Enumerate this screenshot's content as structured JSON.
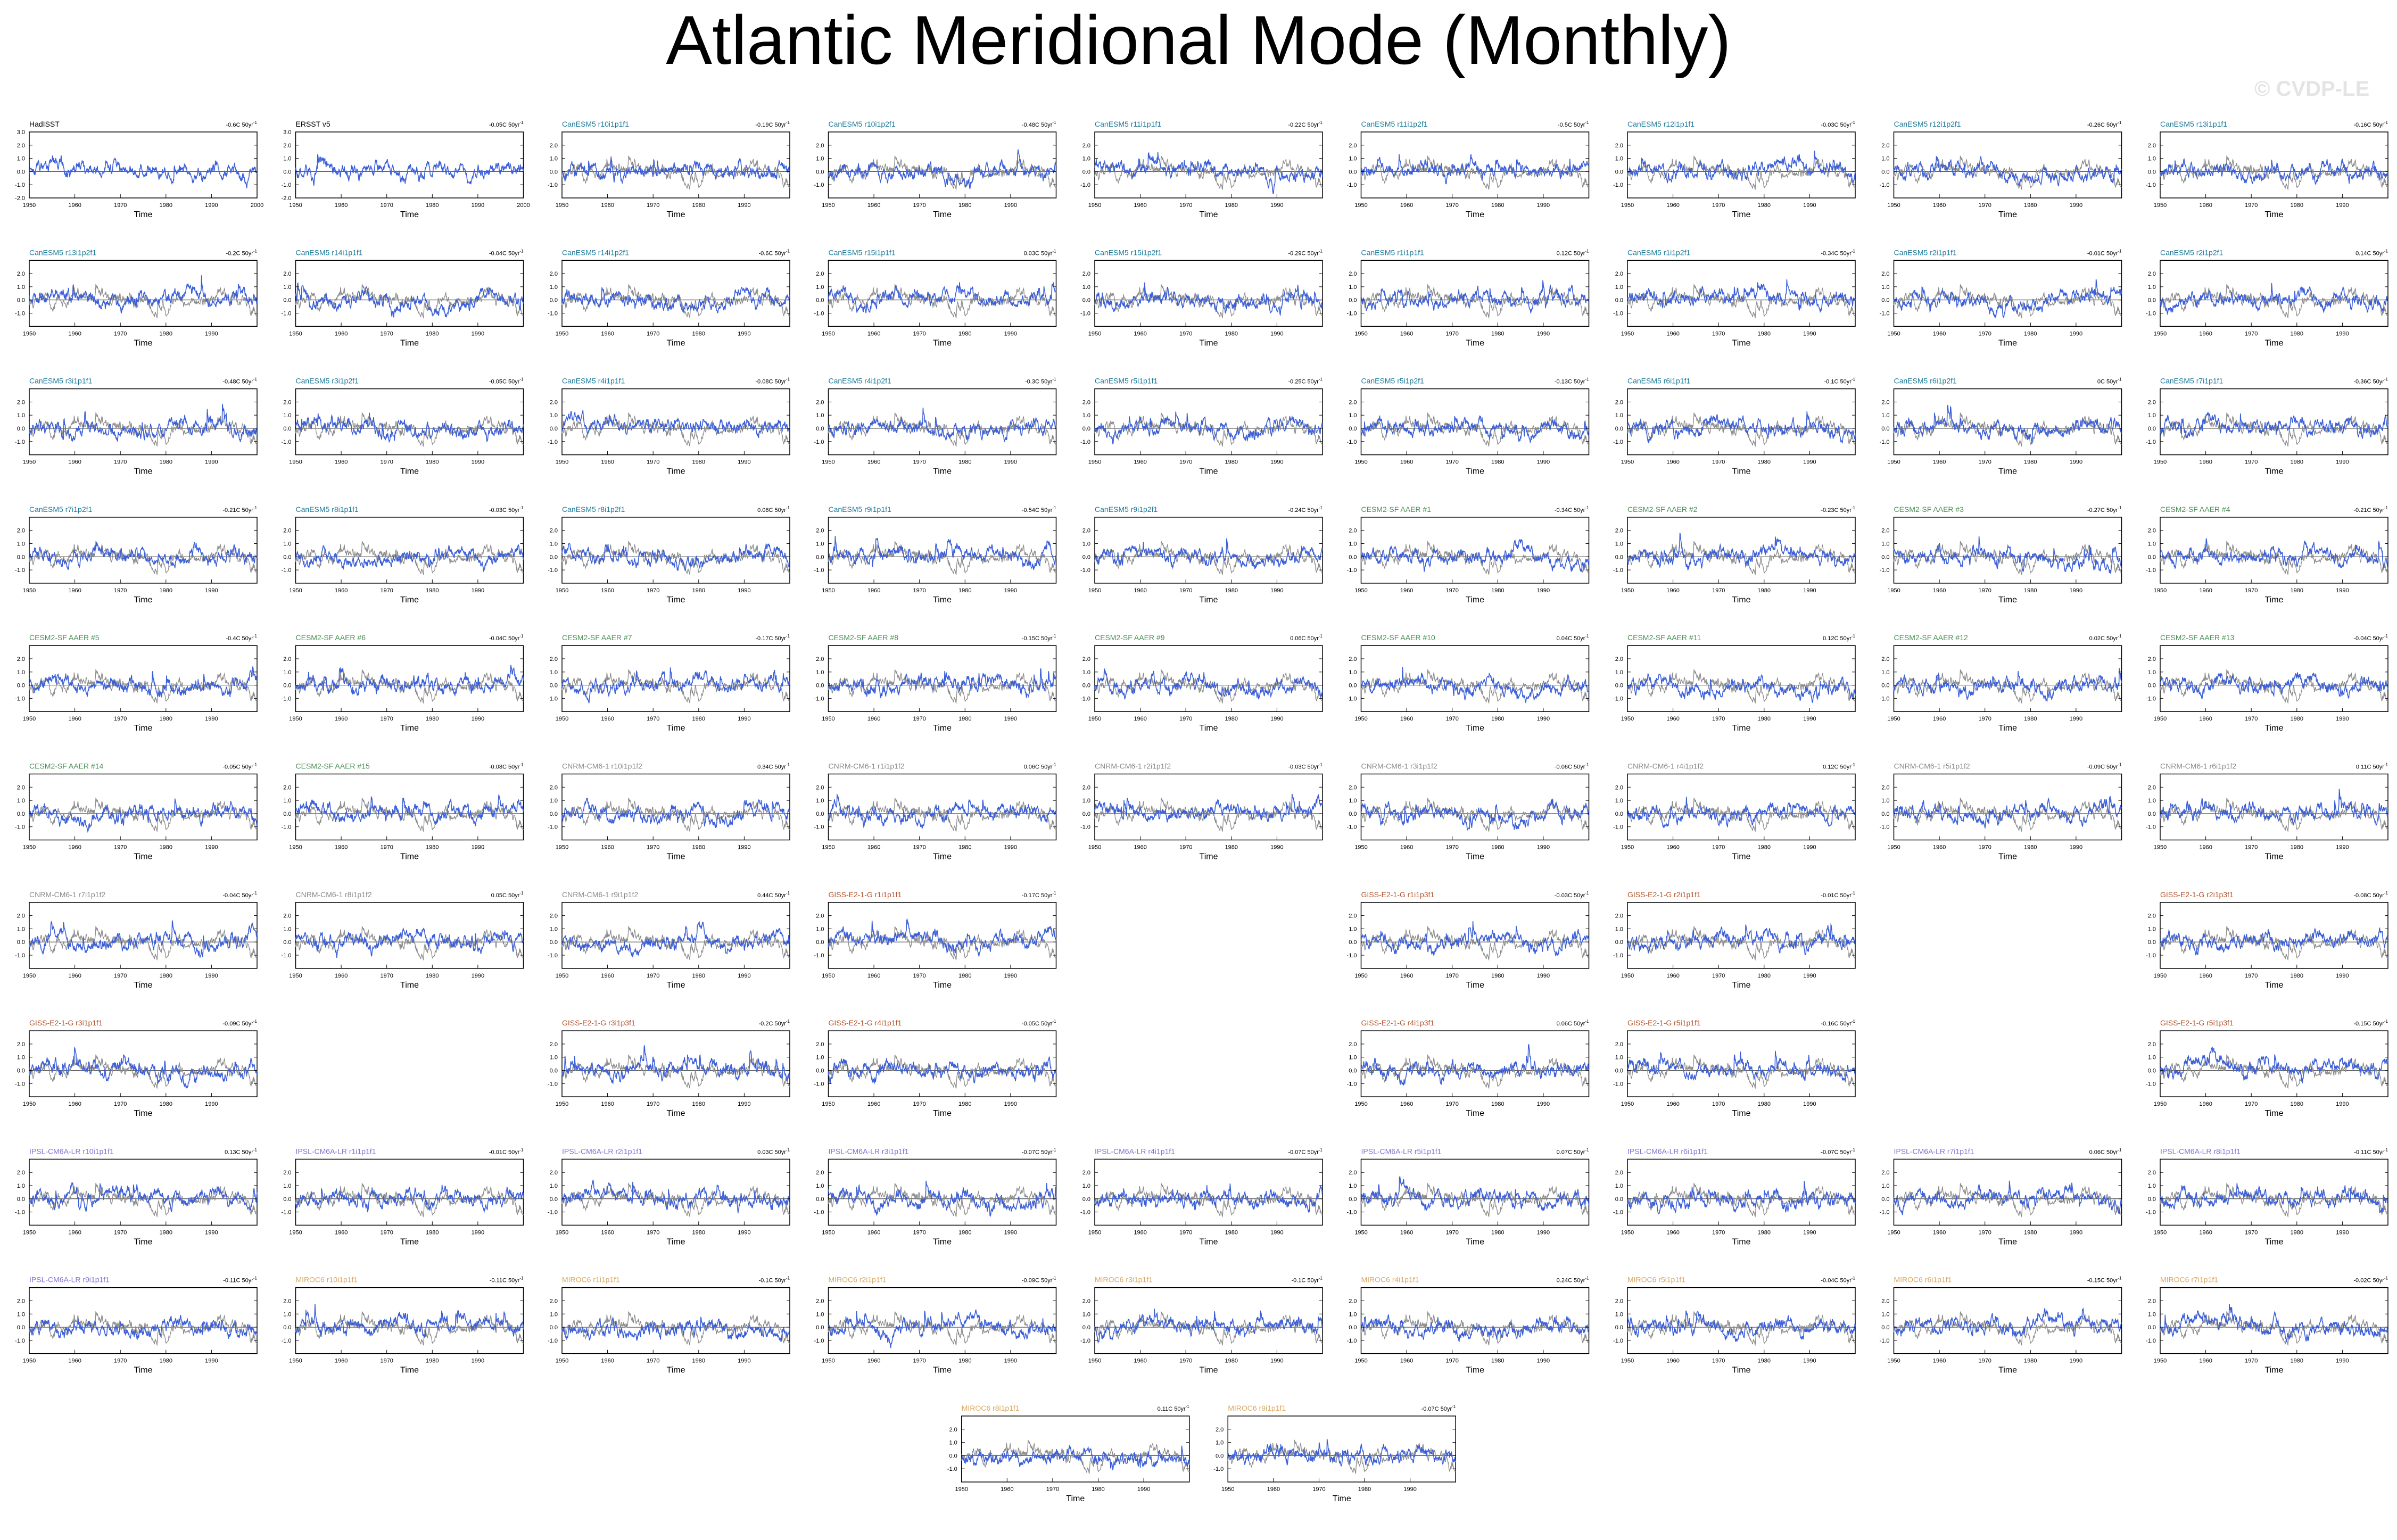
{
  "title": "Atlantic Meridional Mode (Monthly)",
  "watermark": "© CVDP-LE",
  "colors": {
    "model": "#3b5fd9",
    "observed": "#8c8c8c",
    "axis": "#000000",
    "obs_label": "#000000",
    "CanESM5": "#1e7a99",
    "CESM2-SF": "#4a8f55",
    "CNRM-CM6-1": "#8a8a8a",
    "GISS-E2-1-G": "#b4532a",
    "IPSL-CM6A-LR": "#8a6fd6",
    "MIROC6": "#d9a860"
  },
  "chart_data": {
    "type": "line",
    "xlabel": "Time",
    "xlim": [
      1950,
      2000
    ],
    "xticks": [
      1950,
      1960,
      1970,
      1980,
      1990
    ],
    "xticks_obs": [
      1950,
      1960,
      1970,
      1980,
      1990,
      2000
    ],
    "ylim": [
      -2.0,
      3.0
    ],
    "yticks": [
      "2.0",
      "1.0",
      "0.0",
      "-1.0"
    ],
    "yticks_obs": [
      "3.0",
      "2.0",
      "1.0",
      "0.0",
      "-1.0",
      "-2.0"
    ],
    "panels": [
      {
        "row": 0,
        "col": 0,
        "name": "HadISST",
        "trend": "-0.6C 50yr",
        "group": "obs"
      },
      {
        "row": 0,
        "col": 1,
        "name": "ERSST v5",
        "trend": "-0.05C 50yr",
        "group": "obs"
      },
      {
        "row": 0,
        "col": 2,
        "name": "CanESM5 r10i1p1f1",
        "trend": "-0.19C 50yr",
        "group": "CanESM5"
      },
      {
        "row": 0,
        "col": 3,
        "name": "CanESM5 r10i1p2f1",
        "trend": "-0.48C 50yr",
        "group": "CanESM5"
      },
      {
        "row": 0,
        "col": 4,
        "name": "CanESM5 r11i1p1f1",
        "trend": "-0.22C 50yr",
        "group": "CanESM5"
      },
      {
        "row": 0,
        "col": 5,
        "name": "CanESM5 r11i1p2f1",
        "trend": "-0.5C 50yr",
        "group": "CanESM5"
      },
      {
        "row": 0,
        "col": 6,
        "name": "CanESM5 r12i1p1f1",
        "trend": "-0.03C 50yr",
        "group": "CanESM5"
      },
      {
        "row": 0,
        "col": 7,
        "name": "CanESM5 r12i1p2f1",
        "trend": "-0.26C 50yr",
        "group": "CanESM5"
      },
      {
        "row": 0,
        "col": 8,
        "name": "CanESM5 r13i1p1f1",
        "trend": "-0.16C 50yr",
        "group": "CanESM5"
      },
      {
        "row": 1,
        "col": 0,
        "name": "CanESM5 r13i1p2f1",
        "trend": "-0.2C 50yr",
        "group": "CanESM5"
      },
      {
        "row": 1,
        "col": 1,
        "name": "CanESM5 r14i1p1f1",
        "trend": "-0.04C 50yr",
        "group": "CanESM5"
      },
      {
        "row": 1,
        "col": 2,
        "name": "CanESM5 r14i1p2f1",
        "trend": "-0.6C 50yr",
        "group": "CanESM5"
      },
      {
        "row": 1,
        "col": 3,
        "name": "CanESM5 r15i1p1f1",
        "trend": "0.03C 50yr",
        "group": "CanESM5"
      },
      {
        "row": 1,
        "col": 4,
        "name": "CanESM5 r15i1p2f1",
        "trend": "-0.29C 50yr",
        "group": "CanESM5"
      },
      {
        "row": 1,
        "col": 5,
        "name": "CanESM5 r1i1p1f1",
        "trend": "0.12C 50yr",
        "group": "CanESM5"
      },
      {
        "row": 1,
        "col": 6,
        "name": "CanESM5 r1i1p2f1",
        "trend": "-0.34C 50yr",
        "group": "CanESM5"
      },
      {
        "row": 1,
        "col": 7,
        "name": "CanESM5 r2i1p1f1",
        "trend": "-0.01C 50yr",
        "group": "CanESM5"
      },
      {
        "row": 1,
        "col": 8,
        "name": "CanESM5 r2i1p2f1",
        "trend": "0.14C 50yr",
        "group": "CanESM5"
      },
      {
        "row": 2,
        "col": 0,
        "name": "CanESM5 r3i1p1f1",
        "trend": "-0.48C 50yr",
        "group": "CanESM5"
      },
      {
        "row": 2,
        "col": 1,
        "name": "CanESM5 r3i1p2f1",
        "trend": "-0.05C 50yr",
        "group": "CanESM5"
      },
      {
        "row": 2,
        "col": 2,
        "name": "CanESM5 r4i1p1f1",
        "trend": "-0.08C 50yr",
        "group": "CanESM5"
      },
      {
        "row": 2,
        "col": 3,
        "name": "CanESM5 r4i1p2f1",
        "trend": "-0.3C 50yr",
        "group": "CanESM5"
      },
      {
        "row": 2,
        "col": 4,
        "name": "CanESM5 r5i1p1f1",
        "trend": "-0.25C 50yr",
        "group": "CanESM5"
      },
      {
        "row": 2,
        "col": 5,
        "name": "CanESM5 r5i1p2f1",
        "trend": "-0.13C 50yr",
        "group": "CanESM5"
      },
      {
        "row": 2,
        "col": 6,
        "name": "CanESM5 r6i1p1f1",
        "trend": "-0.1C 50yr",
        "group": "CanESM5"
      },
      {
        "row": 2,
        "col": 7,
        "name": "CanESM5 r6i1p2f1",
        "trend": "0C 50yr",
        "group": "CanESM5"
      },
      {
        "row": 2,
        "col": 8,
        "name": "CanESM5 r7i1p1f1",
        "trend": "-0.36C 50yr",
        "group": "CanESM5"
      },
      {
        "row": 3,
        "col": 0,
        "name": "CanESM5 r7i1p2f1",
        "trend": "-0.21C 50yr",
        "group": "CanESM5"
      },
      {
        "row": 3,
        "col": 1,
        "name": "CanESM5 r8i1p1f1",
        "trend": "-0.03C 50yr",
        "group": "CanESM5"
      },
      {
        "row": 3,
        "col": 2,
        "name": "CanESM5 r8i1p2f1",
        "trend": "0.08C 50yr",
        "group": "CanESM5"
      },
      {
        "row": 3,
        "col": 3,
        "name": "CanESM5 r9i1p1f1",
        "trend": "-0.54C 50yr",
        "group": "CanESM5"
      },
      {
        "row": 3,
        "col": 4,
        "name": "CanESM5 r9i1p2f1",
        "trend": "-0.24C 50yr",
        "group": "CanESM5"
      },
      {
        "row": 3,
        "col": 5,
        "name": "CESM2-SF AAER #1",
        "trend": "-0.34C 50yr",
        "group": "CESM2-SF"
      },
      {
        "row": 3,
        "col": 6,
        "name": "CESM2-SF AAER #2",
        "trend": "-0.23C 50yr",
        "group": "CESM2-SF"
      },
      {
        "row": 3,
        "col": 7,
        "name": "CESM2-SF AAER #3",
        "trend": "-0.27C 50yr",
        "group": "CESM2-SF"
      },
      {
        "row": 3,
        "col": 8,
        "name": "CESM2-SF AAER #4",
        "trend": "-0.21C 50yr",
        "group": "CESM2-SF"
      },
      {
        "row": 4,
        "col": 0,
        "name": "CESM2-SF AAER #5",
        "trend": "-0.4C 50yr",
        "group": "CESM2-SF"
      },
      {
        "row": 4,
        "col": 1,
        "name": "CESM2-SF AAER #6",
        "trend": "-0.04C 50yr",
        "group": "CESM2-SF"
      },
      {
        "row": 4,
        "col": 2,
        "name": "CESM2-SF AAER #7",
        "trend": "-0.17C 50yr",
        "group": "CESM2-SF"
      },
      {
        "row": 4,
        "col": 3,
        "name": "CESM2-SF AAER #8",
        "trend": "-0.15C 50yr",
        "group": "CESM2-SF"
      },
      {
        "row": 4,
        "col": 4,
        "name": "CESM2-SF AAER #9",
        "trend": "0.06C 50yr",
        "group": "CESM2-SF"
      },
      {
        "row": 4,
        "col": 5,
        "name": "CESM2-SF AAER #10",
        "trend": "0.04C 50yr",
        "group": "CESM2-SF"
      },
      {
        "row": 4,
        "col": 6,
        "name": "CESM2-SF AAER #11",
        "trend": "0.12C 50yr",
        "group": "CESM2-SF"
      },
      {
        "row": 4,
        "col": 7,
        "name": "CESM2-SF AAER #12",
        "trend": "0.02C 50yr",
        "group": "CESM2-SF"
      },
      {
        "row": 4,
        "col": 8,
        "name": "CESM2-SF AAER #13",
        "trend": "-0.04C 50yr",
        "group": "CESM2-SF"
      },
      {
        "row": 5,
        "col": 0,
        "name": "CESM2-SF AAER #14",
        "trend": "-0.05C 50yr",
        "group": "CESM2-SF"
      },
      {
        "row": 5,
        "col": 1,
        "name": "CESM2-SF AAER #15",
        "trend": "-0.08C 50yr",
        "group": "CESM2-SF"
      },
      {
        "row": 5,
        "col": 2,
        "name": "CNRM-CM6-1 r10i1p1f2",
        "trend": "0.34C 50yr",
        "group": "CNRM-CM6-1"
      },
      {
        "row": 5,
        "col": 3,
        "name": "CNRM-CM6-1 r1i1p1f2",
        "trend": "0.06C 50yr",
        "group": "CNRM-CM6-1"
      },
      {
        "row": 5,
        "col": 4,
        "name": "CNRM-CM6-1 r2i1p1f2",
        "trend": "-0.03C 50yr",
        "group": "CNRM-CM6-1"
      },
      {
        "row": 5,
        "col": 5,
        "name": "CNRM-CM6-1 r3i1p1f2",
        "trend": "-0.06C 50yr",
        "group": "CNRM-CM6-1"
      },
      {
        "row": 5,
        "col": 6,
        "name": "CNRM-CM6-1 r4i1p1f2",
        "trend": "0.12C 50yr",
        "group": "CNRM-CM6-1"
      },
      {
        "row": 5,
        "col": 7,
        "name": "CNRM-CM6-1 r5i1p1f2",
        "trend": "-0.09C 50yr",
        "group": "CNRM-CM6-1"
      },
      {
        "row": 5,
        "col": 8,
        "name": "CNRM-CM6-1 r6i1p1f2",
        "trend": "0.11C 50yr",
        "group": "CNRM-CM6-1"
      },
      {
        "row": 6,
        "col": 0,
        "name": "CNRM-CM6-1 r7i1p1f2",
        "trend": "-0.04C 50yr",
        "group": "CNRM-CM6-1"
      },
      {
        "row": 6,
        "col": 1,
        "name": "CNRM-CM6-1 r8i1p1f2",
        "trend": "0.05C 50yr",
        "group": "CNRM-CM6-1"
      },
      {
        "row": 6,
        "col": 2,
        "name": "CNRM-CM6-1 r9i1p1f2",
        "trend": "0.44C 50yr",
        "group": "CNRM-CM6-1"
      },
      {
        "row": 6,
        "col": 3,
        "name": "GISS-E2-1-G r1i1p1f1",
        "trend": "-0.17C 50yr",
        "group": "GISS-E2-1-G"
      },
      {
        "row": 6,
        "col": 5,
        "name": "GISS-E2-1-G r1i1p3f1",
        "trend": "-0.03C 50yr",
        "group": "GISS-E2-1-G"
      },
      {
        "row": 6,
        "col": 6,
        "name": "GISS-E2-1-G r2i1p1f1",
        "trend": "-0.01C 50yr",
        "group": "GISS-E2-1-G"
      },
      {
        "row": 6,
        "col": 8,
        "name": "GISS-E2-1-G r2i1p3f1",
        "trend": "-0.08C 50yr",
        "group": "GISS-E2-1-G"
      },
      {
        "row": 7,
        "col": 0,
        "name": "GISS-E2-1-G r3i1p1f1",
        "trend": "-0.09C 50yr",
        "group": "GISS-E2-1-G"
      },
      {
        "row": 7,
        "col": 2,
        "name": "GISS-E2-1-G r3i1p3f1",
        "trend": "-0.2C 50yr",
        "group": "GISS-E2-1-G"
      },
      {
        "row": 7,
        "col": 3,
        "name": "GISS-E2-1-G r4i1p1f1",
        "trend": "-0.05C 50yr",
        "group": "GISS-E2-1-G"
      },
      {
        "row": 7,
        "col": 5,
        "name": "GISS-E2-1-G r4i1p3f1",
        "trend": "0.06C 50yr",
        "group": "GISS-E2-1-G"
      },
      {
        "row": 7,
        "col": 6,
        "name": "GISS-E2-1-G r5i1p1f1",
        "trend": "-0.16C 50yr",
        "group": "GISS-E2-1-G"
      },
      {
        "row": 7,
        "col": 8,
        "name": "GISS-E2-1-G r5i1p3f1",
        "trend": "-0.15C 50yr",
        "group": "GISS-E2-1-G"
      },
      {
        "row": 8,
        "col": 0,
        "name": "IPSL-CM6A-LR r10i1p1f1",
        "trend": "0.13C 50yr",
        "group": "IPSL-CM6A-LR"
      },
      {
        "row": 8,
        "col": 1,
        "name": "IPSL-CM6A-LR r1i1p1f1",
        "trend": "-0.01C 50yr",
        "group": "IPSL-CM6A-LR"
      },
      {
        "row": 8,
        "col": 2,
        "name": "IPSL-CM6A-LR r2i1p1f1",
        "trend": "0.03C 50yr",
        "group": "IPSL-CM6A-LR"
      },
      {
        "row": 8,
        "col": 3,
        "name": "IPSL-CM6A-LR r3i1p1f1",
        "trend": "-0.07C 50yr",
        "group": "IPSL-CM6A-LR"
      },
      {
        "row": 8,
        "col": 4,
        "name": "IPSL-CM6A-LR r4i1p1f1",
        "trend": "-0.07C 50yr",
        "group": "IPSL-CM6A-LR"
      },
      {
        "row": 8,
        "col": 5,
        "name": "IPSL-CM6A-LR r5i1p1f1",
        "trend": "0.07C 50yr",
        "group": "IPSL-CM6A-LR"
      },
      {
        "row": 8,
        "col": 6,
        "name": "IPSL-CM6A-LR r6i1p1f1",
        "trend": "-0.07C 50yr",
        "group": "IPSL-CM6A-LR"
      },
      {
        "row": 8,
        "col": 7,
        "name": "IPSL-CM6A-LR r7i1p1f1",
        "trend": "0.06C 50yr",
        "group": "IPSL-CM6A-LR"
      },
      {
        "row": 8,
        "col": 8,
        "name": "IPSL-CM6A-LR r8i1p1f1",
        "trend": "-0.11C 50yr",
        "group": "IPSL-CM6A-LR"
      },
      {
        "row": 9,
        "col": 0,
        "name": "IPSL-CM6A-LR r9i1p1f1",
        "trend": "-0.11C 50yr",
        "group": "IPSL-CM6A-LR"
      },
      {
        "row": 9,
        "col": 1,
        "name": "MIROC6 r10i1p1f1",
        "trend": "-0.11C 50yr",
        "group": "MIROC6"
      },
      {
        "row": 9,
        "col": 2,
        "name": "MIROC6 r1i1p1f1",
        "trend": "-0.1C 50yr",
        "group": "MIROC6"
      },
      {
        "row": 9,
        "col": 3,
        "name": "MIROC6 r2i1p1f1",
        "trend": "-0.09C 50yr",
        "group": "MIROC6"
      },
      {
        "row": 9,
        "col": 4,
        "name": "MIROC6 r3i1p1f1",
        "trend": "-0.1C 50yr",
        "group": "MIROC6"
      },
      {
        "row": 9,
        "col": 5,
        "name": "MIROC6 r4i1p1f1",
        "trend": "0.24C 50yr",
        "group": "MIROC6"
      },
      {
        "row": 9,
        "col": 6,
        "name": "MIROC6 r5i1p1f1",
        "trend": "-0.04C 50yr",
        "group": "MIROC6"
      },
      {
        "row": 9,
        "col": 7,
        "name": "MIROC6 r6i1p1f1",
        "trend": "-0.15C 50yr",
        "group": "MIROC6"
      },
      {
        "row": 9,
        "col": 8,
        "name": "MIROC6 r7i1p1f1",
        "trend": "-0.02C 50yr",
        "group": "MIROC6"
      },
      {
        "row": 10,
        "col": 3.5,
        "name": "MIROC6 r8i1p1f1",
        "trend": "0.11C 50yr",
        "group": "MIROC6"
      },
      {
        "row": 10,
        "col": 4.5,
        "name": "MIROC6 r9i1p1f1",
        "trend": "-0.07C 50yr",
        "group": "MIROC6"
      }
    ]
  }
}
